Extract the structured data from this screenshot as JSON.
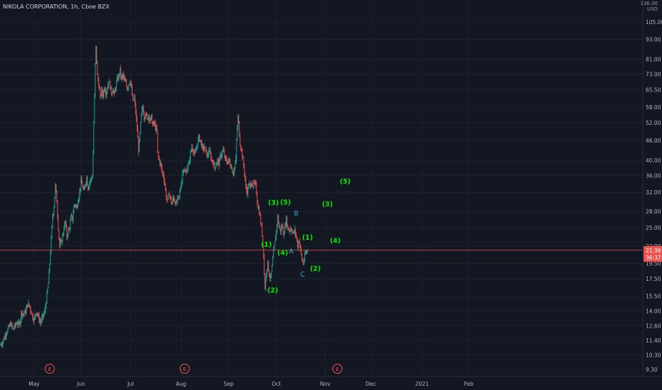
{
  "header": {
    "title": "NIKOLA CORPORATION, 1h, Cboe BZX",
    "log_label": "136.00",
    "unit_label": "USD"
  },
  "colors": {
    "background": "#131722",
    "up": "#26a69a",
    "down": "#ef5350",
    "wave_label": "#00e600",
    "abc_label": "#2ea6c8",
    "price_line": "#ef5350",
    "axis_text": "#b2b5be",
    "grid": "#1e222d",
    "earnings_marker": "#ef5350"
  },
  "chart_data": {
    "type": "candlestick",
    "symbol": "NIKOLA CORPORATION",
    "interval": "1h",
    "exchange": "Cboe BZX",
    "scale": "log",
    "y_ticks": [
      "105.00",
      "93.00",
      "81.00",
      "73.00",
      "65.50",
      "58.00",
      "52.00",
      "46.00",
      "40.00",
      "36.00",
      "32.00",
      "28.00",
      "25.00",
      "22.00",
      "19.50",
      "17.50",
      "15.50",
      "14.00",
      "12.60",
      "11.40",
      "10.30",
      "9.30"
    ],
    "x_ticks": [
      "May",
      "Jun",
      "Jul",
      "Aug",
      "Sep",
      "Oct",
      "Nov",
      "Dec",
      "2021",
      "Feb"
    ],
    "price_tags": [
      {
        "label": "21.36",
        "value": 21.36,
        "color": "#ef5350"
      },
      {
        "label": "36:37",
        "value": 20.3,
        "color": "#ef5350"
      }
    ],
    "current_price": 21.36,
    "earnings_markers": [
      "E",
      "E",
      "E"
    ],
    "path": [
      [
        0,
        11.0
      ],
      [
        3,
        11.2
      ],
      [
        6,
        11.6
      ],
      [
        9,
        12.1
      ],
      [
        12,
        12.4
      ],
      [
        15,
        12.8
      ],
      [
        18,
        12.3
      ],
      [
        21,
        12.6
      ],
      [
        24,
        12.9
      ],
      [
        26,
        12.7
      ],
      [
        28,
        12.9
      ],
      [
        30,
        13.8
      ],
      [
        33,
        13.7
      ],
      [
        36,
        13.9
      ],
      [
        39,
        14.7
      ],
      [
        42,
        14.4
      ],
      [
        45,
        13.6
      ],
      [
        48,
        13.1
      ],
      [
        51,
        14.0
      ],
      [
        54,
        13.4
      ],
      [
        57,
        12.9
      ],
      [
        60,
        13.4
      ],
      [
        63,
        13.9
      ],
      [
        66,
        15.6
      ],
      [
        68,
        17.0
      ],
      [
        70,
        19.5
      ],
      [
        72,
        23.0
      ],
      [
        74,
        27.0
      ],
      [
        76,
        29.0
      ],
      [
        78,
        33.5
      ],
      [
        80,
        30.0
      ],
      [
        82,
        25.0
      ],
      [
        84,
        22.0
      ],
      [
        86,
        22.5
      ],
      [
        88,
        23.5
      ],
      [
        90,
        25.0
      ],
      [
        92,
        26.0
      ],
      [
        94,
        23.5
      ],
      [
        96,
        24.5
      ],
      [
        98,
        25.0
      ],
      [
        100,
        27.0
      ],
      [
        102,
        26.5
      ],
      [
        104,
        29.0
      ],
      [
        106,
        29.5
      ],
      [
        108,
        28.5
      ],
      [
        110,
        30.5
      ],
      [
        112,
        32.0
      ],
      [
        114,
        34.5
      ],
      [
        116,
        33.5
      ],
      [
        118,
        32.0
      ],
      [
        120,
        34.0
      ],
      [
        122,
        35.5
      ],
      [
        124,
        33.0
      ],
      [
        126,
        34.5
      ],
      [
        128,
        35.0
      ],
      [
        130,
        36.0
      ],
      [
        131,
        42.0
      ],
      [
        132,
        52.0
      ],
      [
        133,
        62.0
      ],
      [
        134,
        78.0
      ],
      [
        135,
        88.0
      ],
      [
        136,
        80.0
      ],
      [
        137,
        72.0
      ],
      [
        139,
        68.0
      ],
      [
        141,
        62.0
      ],
      [
        143,
        65.0
      ],
      [
        145,
        63.0
      ],
      [
        147,
        67.0
      ],
      [
        149,
        64.0
      ],
      [
        151,
        66.0
      ],
      [
        153,
        70.0
      ],
      [
        155,
        67.0
      ],
      [
        157,
        64.0
      ],
      [
        159,
        66.0
      ],
      [
        161,
        63.0
      ],
      [
        163,
        67.0
      ],
      [
        165,
        70.0
      ],
      [
        167,
        72.0
      ],
      [
        169,
        75.0
      ],
      [
        171,
        70.0
      ],
      [
        173,
        73.0
      ],
      [
        175,
        69.0
      ],
      [
        177,
        70.0
      ],
      [
        179,
        66.0
      ],
      [
        181,
        68.0
      ],
      [
        183,
        70.0
      ],
      [
        185,
        66.0
      ],
      [
        187,
        60.0
      ],
      [
        189,
        62.0
      ],
      [
        191,
        56.0
      ],
      [
        193,
        50.0
      ],
      [
        195,
        43.0
      ],
      [
        197,
        48.0
      ],
      [
        199,
        55.0
      ],
      [
        201,
        58.0
      ],
      [
        203,
        54.0
      ],
      [
        205,
        56.0
      ],
      [
        207,
        53.0
      ],
      [
        209,
        55.0
      ],
      [
        211,
        53.0
      ],
      [
        213,
        54.0
      ],
      [
        215,
        51.0
      ],
      [
        217,
        52.0
      ],
      [
        219,
        50.0
      ],
      [
        221,
        49.0
      ],
      [
        222,
        42.0
      ],
      [
        224,
        40.0
      ],
      [
        226,
        39.0
      ],
      [
        228,
        37.0
      ],
      [
        230,
        36.0
      ],
      [
        232,
        34.0
      ],
      [
        234,
        31.0
      ],
      [
        236,
        30.0
      ],
      [
        238,
        32.0
      ],
      [
        240,
        30.5
      ],
      [
        242,
        29.5
      ],
      [
        244,
        31.0
      ],
      [
        246,
        30.0
      ],
      [
        248,
        29.5
      ],
      [
        250,
        30.5
      ],
      [
        252,
        31.0
      ],
      [
        254,
        33.0
      ],
      [
        256,
        35.0
      ],
      [
        258,
        38.0
      ],
      [
        260,
        37.0
      ],
      [
        262,
        36.5
      ],
      [
        264,
        38.5
      ],
      [
        266,
        39.0
      ],
      [
        268,
        42.0
      ],
      [
        270,
        44.0
      ],
      [
        272,
        43.0
      ],
      [
        274,
        41.5
      ],
      [
        276,
        43.0
      ],
      [
        278,
        45.0
      ],
      [
        280,
        47.0
      ],
      [
        282,
        46.0
      ],
      [
        284,
        44.5
      ],
      [
        286,
        43.0
      ],
      [
        288,
        44.0
      ],
      [
        290,
        42.5
      ],
      [
        292,
        41.0
      ],
      [
        294,
        43.0
      ],
      [
        296,
        41.5
      ],
      [
        298,
        40.0
      ],
      [
        300,
        39.5
      ],
      [
        302,
        38.0
      ],
      [
        304,
        39.0
      ],
      [
        306,
        40.0
      ],
      [
        308,
        39.0
      ],
      [
        310,
        41.0
      ],
      [
        312,
        42.0
      ],
      [
        314,
        43.0
      ],
      [
        316,
        41.0
      ],
      [
        318,
        40.0
      ],
      [
        320,
        39.5
      ],
      [
        322,
        40.0
      ],
      [
        324,
        39.0
      ],
      [
        326,
        38.0
      ],
      [
        328,
        36.5
      ],
      [
        330,
        38.0
      ],
      [
        332,
        40.0
      ],
      [
        333,
        46.0
      ],
      [
        334,
        50.0
      ],
      [
        335,
        54.0
      ],
      [
        336,
        52.0
      ],
      [
        337,
        48.0
      ],
      [
        338,
        45.0
      ],
      [
        340,
        43.0
      ],
      [
        342,
        40.0
      ],
      [
        344,
        37.0
      ],
      [
        346,
        33.0
      ],
      [
        348,
        32.0
      ],
      [
        350,
        34.0
      ],
      [
        352,
        33.0
      ],
      [
        354,
        34.5
      ],
      [
        356,
        33.5
      ],
      [
        358,
        34.0
      ],
      [
        360,
        33.5
      ],
      [
        363,
        29.0
      ],
      [
        365,
        28.0
      ],
      [
        367,
        26.0
      ],
      [
        369,
        24.0
      ],
      [
        371,
        21.0
      ],
      [
        372,
        18.0
      ],
      [
        373,
        16.5
      ],
      [
        375,
        18.5
      ],
      [
        377,
        19.5
      ],
      [
        379,
        18.0
      ],
      [
        381,
        17.5
      ],
      [
        383,
        19.0
      ],
      [
        385,
        21.0
      ],
      [
        387,
        22.5
      ],
      [
        389,
        24.5
      ],
      [
        391,
        27.0
      ],
      [
        393,
        25.0
      ],
      [
        395,
        24.5
      ],
      [
        397,
        25.5
      ],
      [
        399,
        24.0
      ],
      [
        401,
        25.0
      ],
      [
        403,
        26.5
      ],
      [
        405,
        25.0
      ],
      [
        407,
        24.5
      ],
      [
        409,
        25.0
      ],
      [
        411,
        24.5
      ],
      [
        413,
        24.0
      ],
      [
        415,
        24.5
      ],
      [
        417,
        23.5
      ],
      [
        419,
        22.0
      ],
      [
        421,
        23.0
      ],
      [
        423,
        21.5
      ],
      [
        425,
        20.0
      ],
      [
        427,
        19.5
      ],
      [
        429,
        20.5
      ],
      [
        431,
        21.0
      ],
      [
        433,
        21.36
      ]
    ]
  },
  "annotations": {
    "wave_labels": [
      {
        "text": "(3)",
        "price": 29.3
      },
      {
        "text": "(5)",
        "price": 29.4
      },
      {
        "text": "(1)",
        "price": 21.9
      },
      {
        "text": "(4)",
        "price": 20.7
      },
      {
        "text": "(2)",
        "price": 15.9
      },
      {
        "text": "(1)",
        "price": 23.0
      },
      {
        "text": "(2)",
        "price": 18.5
      },
      {
        "text": "(3)",
        "price": 29.0
      },
      {
        "text": "(4)",
        "price": 22.5
      },
      {
        "text": "(5)",
        "price": 34.0
      }
    ],
    "abc_labels": [
      {
        "text": "B",
        "price": 27.2
      },
      {
        "text": "A",
        "price": 20.9
      },
      {
        "text": "C",
        "price": 17.8
      }
    ]
  }
}
